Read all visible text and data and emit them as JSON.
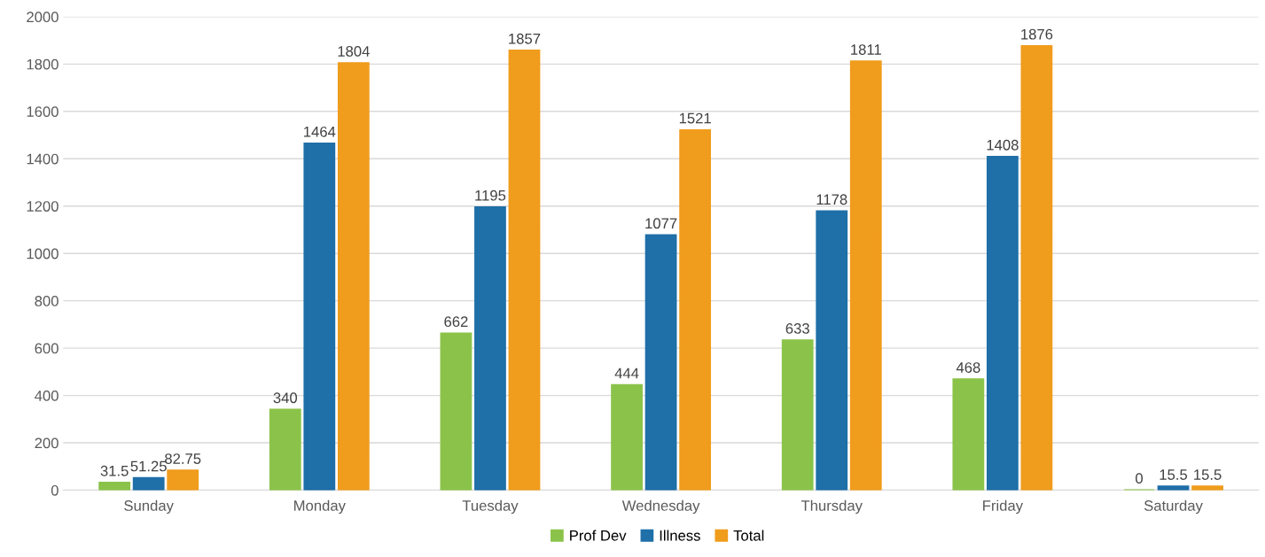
{
  "chart_data": {
    "type": "bar",
    "categories": [
      "Sunday",
      "Monday",
      "Tuesday",
      "Wednesday",
      "Thursday",
      "Friday",
      "Saturday"
    ],
    "series": [
      {
        "name": "Prof Dev",
        "color": "#8bc34a",
        "values": [
          31.5,
          340,
          662,
          444,
          633,
          468,
          0
        ]
      },
      {
        "name": "Illness",
        "color": "#1f6fa8",
        "values": [
          51.25,
          1464,
          1195,
          1077,
          1178,
          1408,
          15.5
        ]
      },
      {
        "name": "Total",
        "color": "#f09c1c",
        "values": [
          82.75,
          1804,
          1857,
          1521,
          1811,
          1876,
          15.5
        ]
      }
    ],
    "ylim": [
      0,
      2000
    ],
    "yticks": [
      0,
      200,
      400,
      600,
      800,
      1000,
      1200,
      1400,
      1600,
      1800,
      2000
    ],
    "grid": "y",
    "legend": "bottom",
    "data_labels": true
  }
}
